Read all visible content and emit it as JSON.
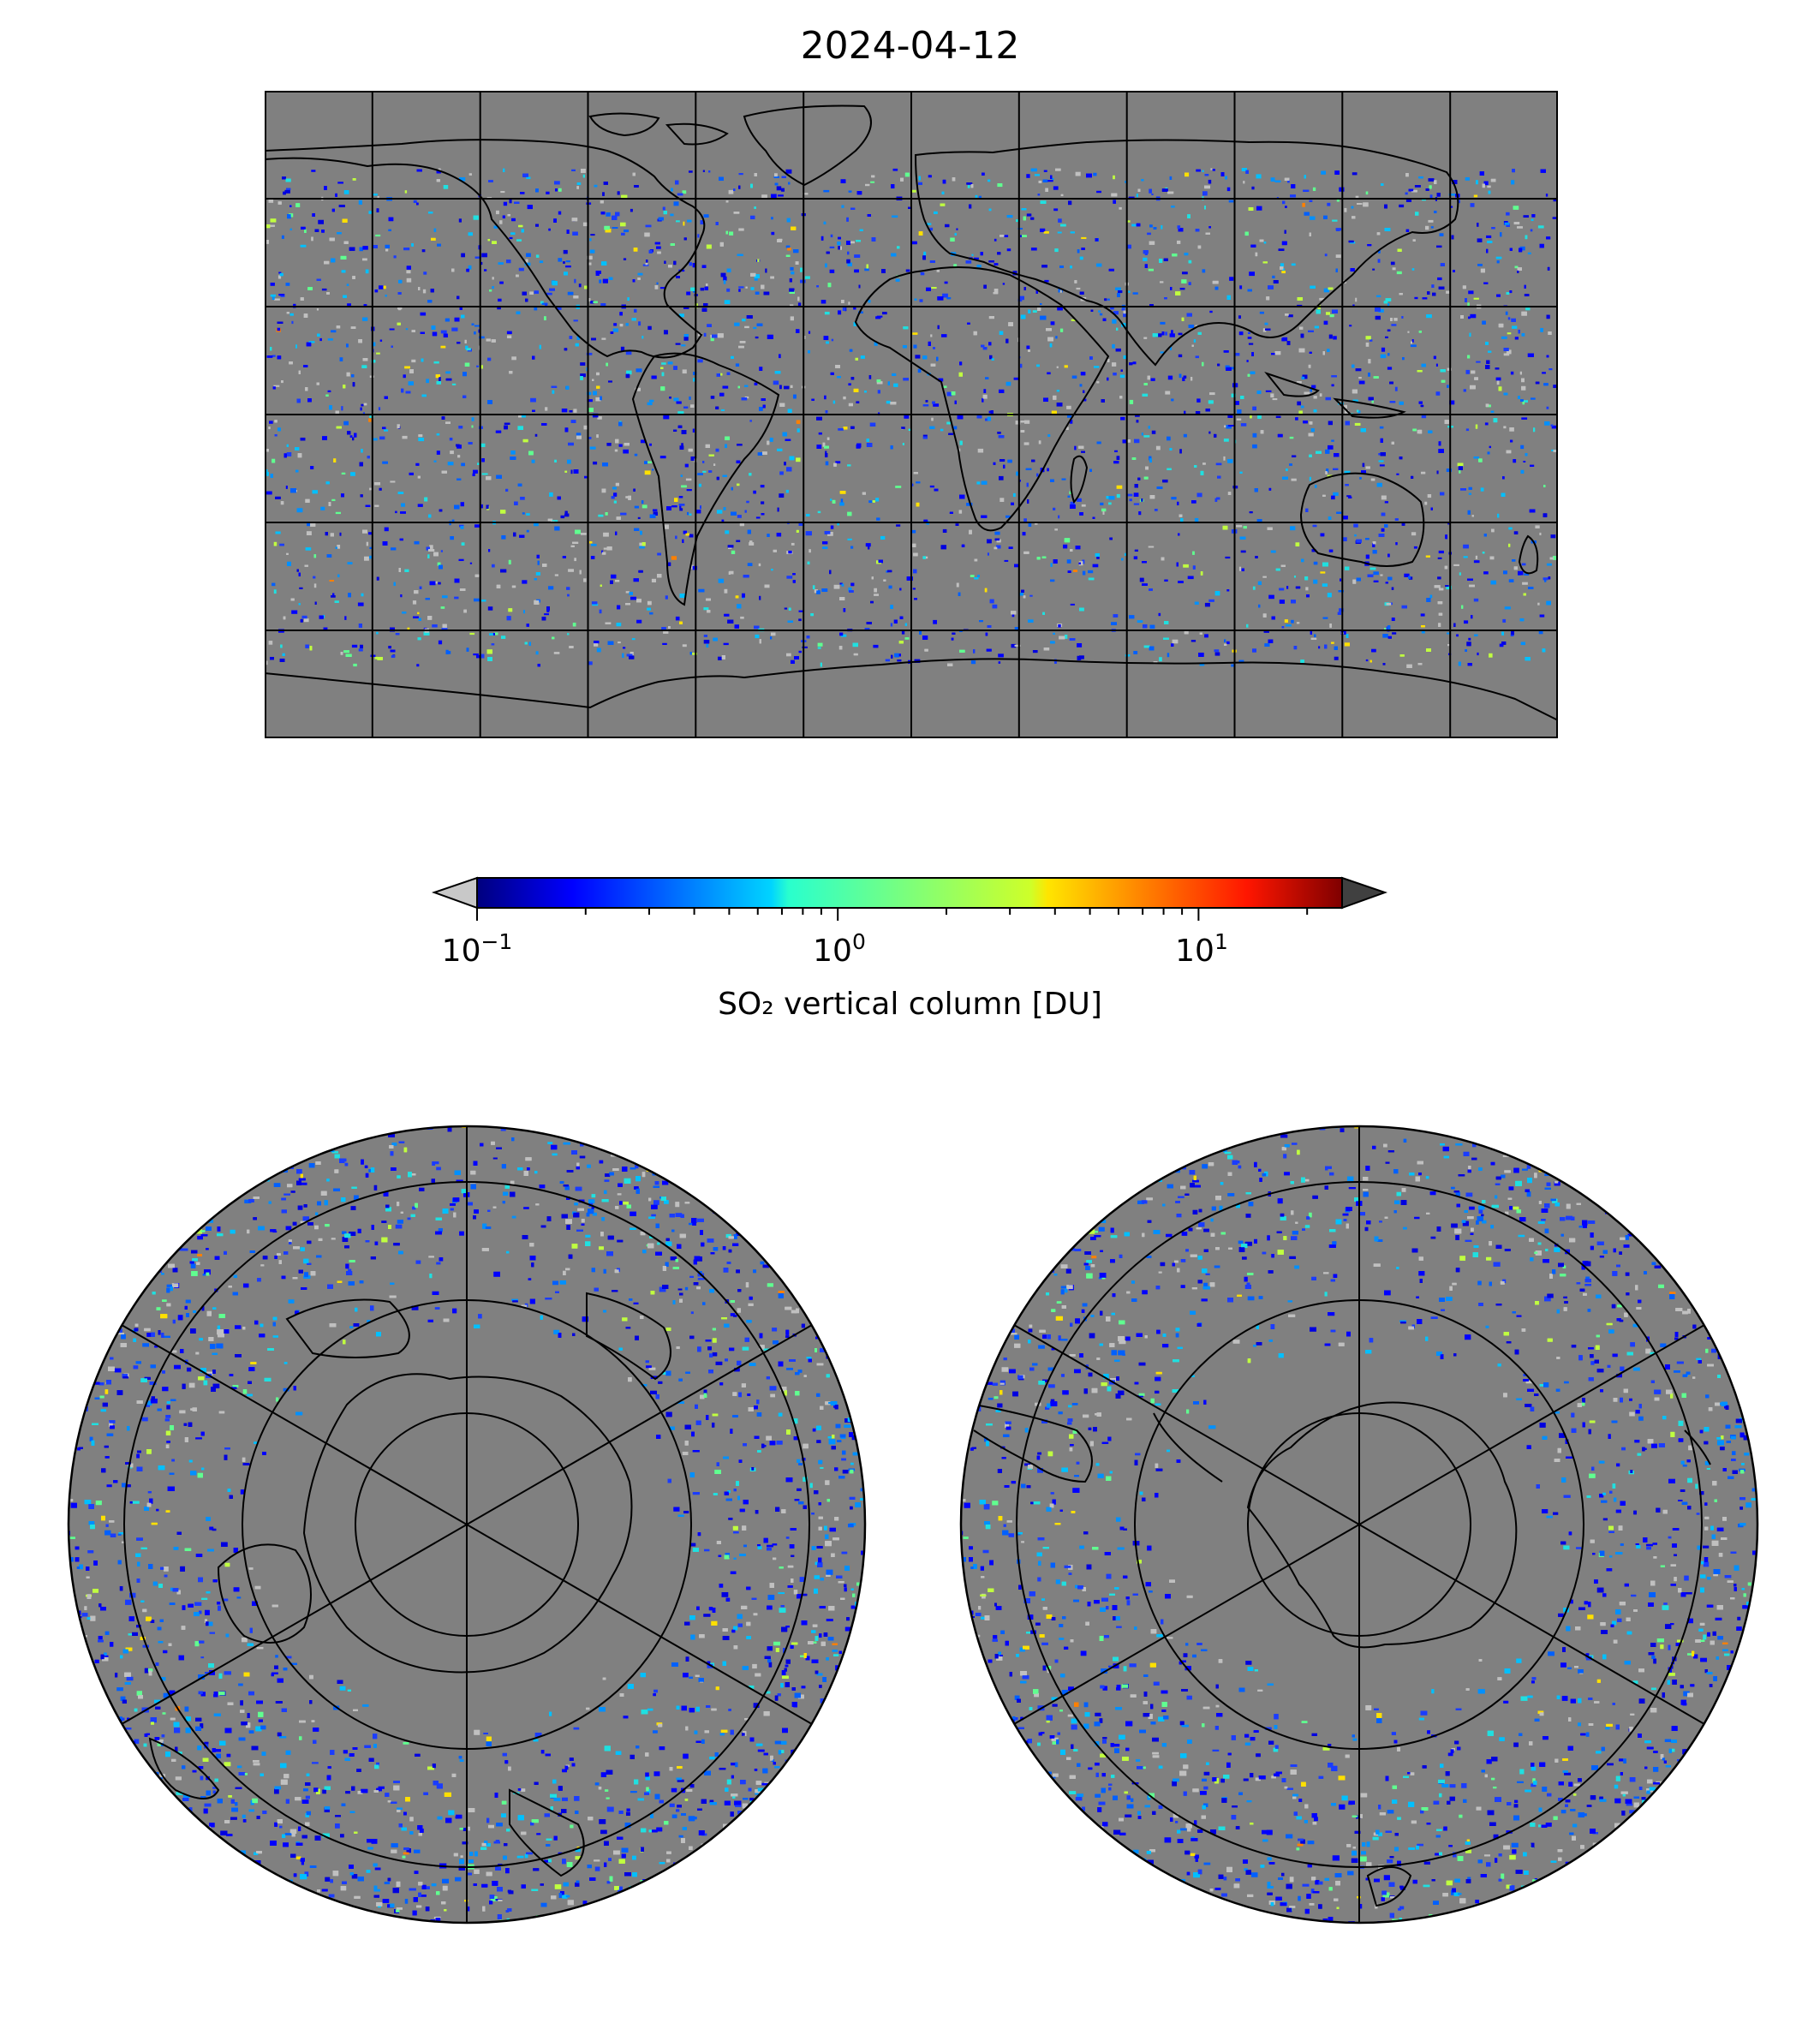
{
  "title": "2024-04-12",
  "colorbar": {
    "label": "SO₂ vertical column [DU]",
    "scale": "log",
    "range": [
      0.1,
      25
    ],
    "colormap": "jet",
    "under_color": "#c8c8c8",
    "over_color": "#404040",
    "ticks": [
      {
        "base": "10",
        "exp": "−1",
        "value": 0.1
      },
      {
        "base": "10",
        "exp": "0",
        "value": 1
      },
      {
        "base": "10",
        "exp": "1",
        "value": 10
      }
    ]
  },
  "colors": {
    "background_gray": "#808080",
    "light_gray": "#c0c0c0",
    "coastline": "#000000",
    "gridline": "#000000"
  },
  "world_map": {
    "projection": "equirectangular",
    "lon_range": [
      -180,
      180
    ],
    "lat_range": [
      -90,
      90
    ],
    "meridian_spacing_deg": 30,
    "parallel_spacing_deg": 30
  },
  "polar_maps": [
    {
      "name": "north",
      "hemisphere": "northern",
      "outer_latitude": 30
    },
    {
      "name": "south",
      "hemisphere": "southern",
      "outer_latitude": -30
    }
  ]
}
